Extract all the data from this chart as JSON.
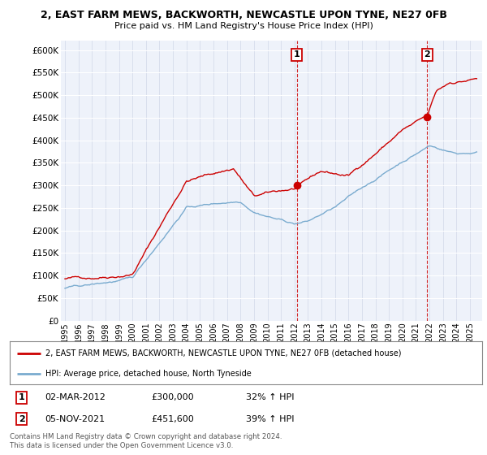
{
  "title1": "2, EAST FARM MEWS, BACKWORTH, NEWCASTLE UPON TYNE, NE27 0FB",
  "title2": "Price paid vs. HM Land Registry's House Price Index (HPI)",
  "ylim": [
    0,
    620000
  ],
  "yticks": [
    0,
    50000,
    100000,
    150000,
    200000,
    250000,
    300000,
    350000,
    400000,
    450000,
    500000,
    550000,
    600000
  ],
  "ytick_labels": [
    "£0",
    "£50K",
    "£100K",
    "£150K",
    "£200K",
    "£250K",
    "£300K",
    "£350K",
    "£400K",
    "£450K",
    "£500K",
    "£550K",
    "£600K"
  ],
  "sale1_date": 2012.17,
  "sale1_price": 300000,
  "sale1_text": "02-MAR-2012",
  "sale1_price_text": "£300,000",
  "sale1_hpi_text": "32% ↑ HPI",
  "sale2_date": 2021.84,
  "sale2_price": 451600,
  "sale2_text": "05-NOV-2021",
  "sale2_price_text": "£451,600",
  "sale2_hpi_text": "39% ↑ HPI",
  "red_line_color": "#cc0000",
  "blue_line_color": "#7aabcf",
  "vline_color": "#cc0000",
  "legend_property": "2, EAST FARM MEWS, BACKWORTH, NEWCASTLE UPON TYNE, NE27 0FB (detached house)",
  "legend_hpi": "HPI: Average price, detached house, North Tyneside",
  "footer": "Contains HM Land Registry data © Crown copyright and database right 2024.\nThis data is licensed under the Open Government Licence v3.0.",
  "background_color": "#ffffff",
  "plot_bg_color": "#eef2fa"
}
